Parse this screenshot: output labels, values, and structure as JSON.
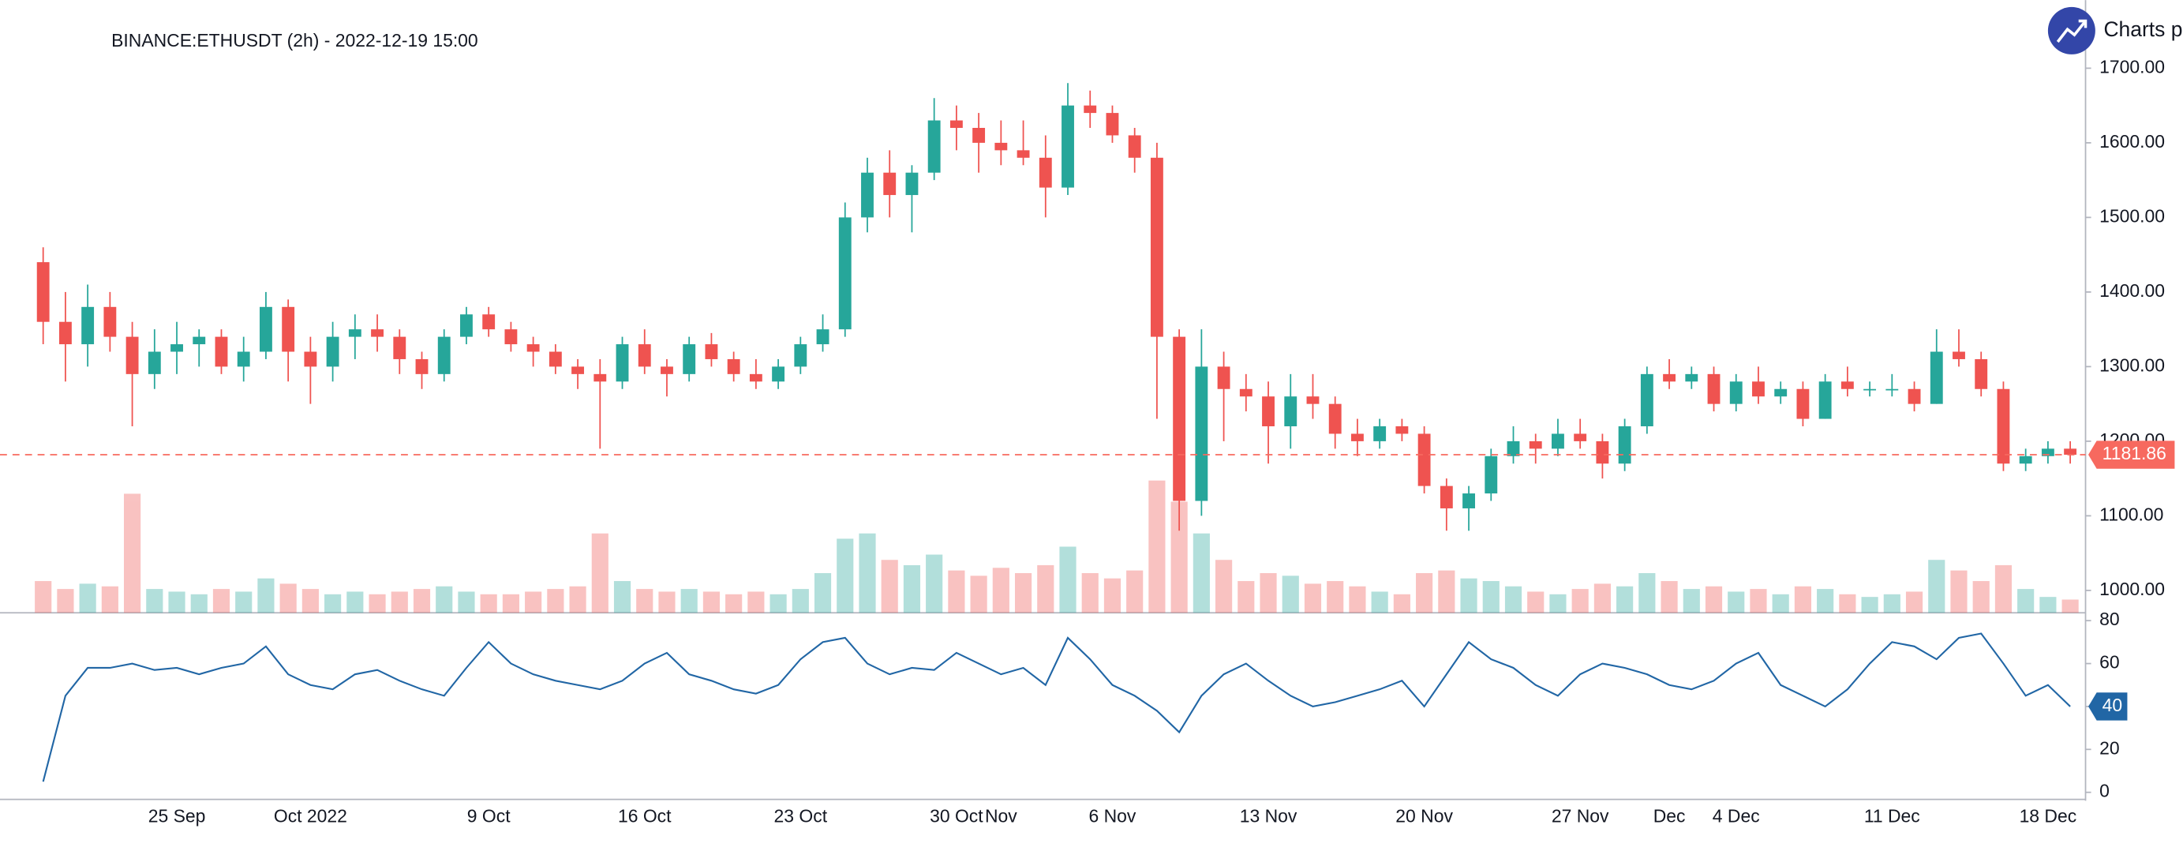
{
  "chart_data": {
    "type": "candlestick",
    "title": "BINANCE:ETHUSDT (2h) - 2022-12-19 15:00",
    "brand": "Charts p",
    "categories": [
      null,
      null,
      null,
      null,
      null,
      null,
      "25 Sep",
      null,
      null,
      null,
      null,
      null,
      "Oct 2022",
      null,
      null,
      null,
      null,
      null,
      null,
      null,
      "9 Oct",
      null,
      null,
      null,
      null,
      null,
      null,
      "16 Oct",
      null,
      null,
      null,
      null,
      null,
      null,
      "23 Oct",
      null,
      null,
      null,
      null,
      null,
      null,
      "30 Oct",
      null,
      "Nov",
      null,
      null,
      null,
      null,
      "6 Nov",
      null,
      null,
      null,
      null,
      null,
      null,
      "13 Nov",
      null,
      null,
      null,
      null,
      null,
      null,
      "20 Nov",
      null,
      null,
      null,
      null,
      null,
      null,
      "27 Nov",
      null,
      null,
      null,
      "Dec",
      null,
      null,
      "4 Dec",
      null,
      null,
      null,
      null,
      null,
      null,
      "11 Dec",
      null,
      null,
      null,
      null,
      null,
      null,
      "18 Dec",
      null
    ],
    "open": [
      1440,
      1360,
      1330,
      1380,
      1340,
      1290,
      1320,
      1330,
      1340,
      1300,
      1320,
      1380,
      1320,
      1300,
      1340,
      1350,
      1340,
      1310,
      1290,
      1340,
      1370,
      1350,
      1330,
      1320,
      1300,
      1290,
      1280,
      1330,
      1300,
      1290,
      1330,
      1310,
      1290,
      1280,
      1300,
      1330,
      1350,
      1500,
      1560,
      1530,
      1560,
      1630,
      1620,
      1600,
      1590,
      1580,
      1540,
      1650,
      1640,
      1610,
      1580,
      1340,
      1120,
      1300,
      1270,
      1260,
      1220,
      1260,
      1250,
      1210,
      1200,
      1220,
      1210,
      1140,
      1110,
      1130,
      1180,
      1200,
      1190,
      1210,
      1200,
      1170,
      1220,
      1290,
      1280,
      1290,
      1250,
      1280,
      1260,
      1270,
      1230,
      1280,
      1270,
      1270,
      1270,
      1250,
      1320,
      1310,
      1270,
      1170,
      1180,
      1190
    ],
    "high": [
      1460,
      1400,
      1410,
      1400,
      1360,
      1350,
      1360,
      1350,
      1350,
      1340,
      1400,
      1390,
      1340,
      1360,
      1370,
      1370,
      1350,
      1320,
      1350,
      1380,
      1380,
      1360,
      1340,
      1330,
      1310,
      1310,
      1340,
      1350,
      1310,
      1340,
      1345,
      1320,
      1310,
      1310,
      1340,
      1370,
      1520,
      1580,
      1590,
      1570,
      1660,
      1650,
      1640,
      1630,
      1630,
      1610,
      1680,
      1670,
      1650,
      1620,
      1600,
      1350,
      1350,
      1320,
      1290,
      1280,
      1290,
      1290,
      1260,
      1230,
      1230,
      1230,
      1220,
      1150,
      1140,
      1190,
      1220,
      1210,
      1230,
      1230,
      1210,
      1230,
      1300,
      1310,
      1300,
      1300,
      1290,
      1300,
      1280,
      1280,
      1290,
      1300,
      1280,
      1290,
      1280,
      1350,
      1350,
      1320,
      1280,
      1190,
      1200,
      1200
    ],
    "low": [
      1330,
      1280,
      1300,
      1320,
      1220,
      1270,
      1290,
      1300,
      1290,
      1280,
      1310,
      1280,
      1250,
      1280,
      1310,
      1320,
      1290,
      1270,
      1280,
      1330,
      1340,
      1320,
      1300,
      1290,
      1270,
      1190,
      1270,
      1290,
      1260,
      1280,
      1300,
      1280,
      1270,
      1270,
      1290,
      1320,
      1340,
      1480,
      1500,
      1480,
      1550,
      1590,
      1560,
      1570,
      1570,
      1500,
      1530,
      1620,
      1600,
      1560,
      1230,
      1080,
      1100,
      1200,
      1240,
      1170,
      1190,
      1230,
      1190,
      1180,
      1190,
      1200,
      1130,
      1080,
      1080,
      1120,
      1170,
      1170,
      1180,
      1190,
      1150,
      1160,
      1210,
      1270,
      1270,
      1240,
      1240,
      1250,
      1250,
      1220,
      1230,
      1260,
      1260,
      1260,
      1240,
      1250,
      1300,
      1260,
      1160,
      1160,
      1170,
      1170
    ],
    "close": [
      1360,
      1330,
      1380,
      1340,
      1290,
      1320,
      1330,
      1340,
      1300,
      1320,
      1380,
      1320,
      1300,
      1340,
      1350,
      1340,
      1310,
      1290,
      1340,
      1370,
      1350,
      1330,
      1320,
      1300,
      1290,
      1280,
      1330,
      1300,
      1290,
      1330,
      1310,
      1290,
      1280,
      1300,
      1330,
      1350,
      1500,
      1560,
      1530,
      1560,
      1630,
      1620,
      1600,
      1590,
      1580,
      1540,
      1650,
      1640,
      1610,
      1580,
      1340,
      1120,
      1300,
      1270,
      1260,
      1220,
      1260,
      1250,
      1210,
      1200,
      1220,
      1210,
      1140,
      1110,
      1130,
      1180,
      1200,
      1190,
      1210,
      1200,
      1170,
      1220,
      1290,
      1280,
      1290,
      1250,
      1280,
      1260,
      1270,
      1230,
      1280,
      1270,
      1270,
      1270,
      1250,
      1320,
      1310,
      1270,
      1170,
      1180,
      1190,
      1181.86
    ],
    "volume": [
      120000,
      90000,
      110000,
      100000,
      450000,
      90000,
      80000,
      70000,
      90000,
      80000,
      130000,
      110000,
      90000,
      70000,
      80000,
      70000,
      80000,
      90000,
      100000,
      80000,
      70000,
      70000,
      80000,
      90000,
      100000,
      300000,
      120000,
      90000,
      80000,
      90000,
      80000,
      70000,
      80000,
      70000,
      90000,
      150000,
      280000,
      300000,
      200000,
      180000,
      220000,
      160000,
      140000,
      170000,
      150000,
      180000,
      250000,
      150000,
      130000,
      160000,
      500000,
      420000,
      300000,
      200000,
      120000,
      150000,
      140000,
      110000,
      120000,
      100000,
      80000,
      70000,
      150000,
      160000,
      130000,
      120000,
      100000,
      80000,
      70000,
      90000,
      110000,
      100000,
      150000,
      120000,
      90000,
      100000,
      80000,
      90000,
      70000,
      100000,
      90000,
      70000,
      60000,
      70000,
      80000,
      200000,
      160000,
      120000,
      180000,
      90000,
      60000,
      50000
    ],
    "up_color": "#26a69a",
    "down_color": "#ef5350",
    "ylim": [
      970,
      1782
    ],
    "yticks": [
      {
        "value": 1000,
        "label": "1000.00"
      },
      {
        "value": 1100,
        "label": "1100.00"
      },
      {
        "value": 1200,
        "label": "1200.00"
      },
      {
        "value": 1300,
        "label": "1300.00"
      },
      {
        "value": 1400,
        "label": "1400.00"
      },
      {
        "value": 1500,
        "label": "1500.00"
      },
      {
        "value": 1600,
        "label": "1600.00"
      },
      {
        "value": 1700,
        "label": "1700.00"
      }
    ],
    "last_price": 1181.86,
    "last_price_color": "#f7695f",
    "oscillator": {
      "color": "#2166a5",
      "values": [
        5,
        45,
        58,
        58,
        60,
        57,
        58,
        55,
        58,
        60,
        68,
        55,
        50,
        48,
        55,
        57,
        52,
        48,
        45,
        58,
        70,
        60,
        55,
        52,
        50,
        48,
        52,
        60,
        65,
        55,
        52,
        48,
        46,
        50,
        62,
        70,
        72,
        60,
        55,
        58,
        57,
        65,
        60,
        55,
        58,
        50,
        72,
        62,
        50,
        45,
        38,
        28,
        45,
        55,
        60,
        52,
        45,
        40,
        42,
        45,
        48,
        52,
        40,
        55,
        70,
        62,
        58,
        50,
        45,
        55,
        60,
        58,
        55,
        50,
        48,
        52,
        60,
        65,
        50,
        45,
        40,
        48,
        60,
        70,
        68,
        62,
        72,
        74,
        60,
        45,
        50,
        40
      ],
      "ylim": [
        -2,
        83
      ],
      "yticks": [
        0,
        20,
        40,
        60,
        80
      ]
    }
  }
}
